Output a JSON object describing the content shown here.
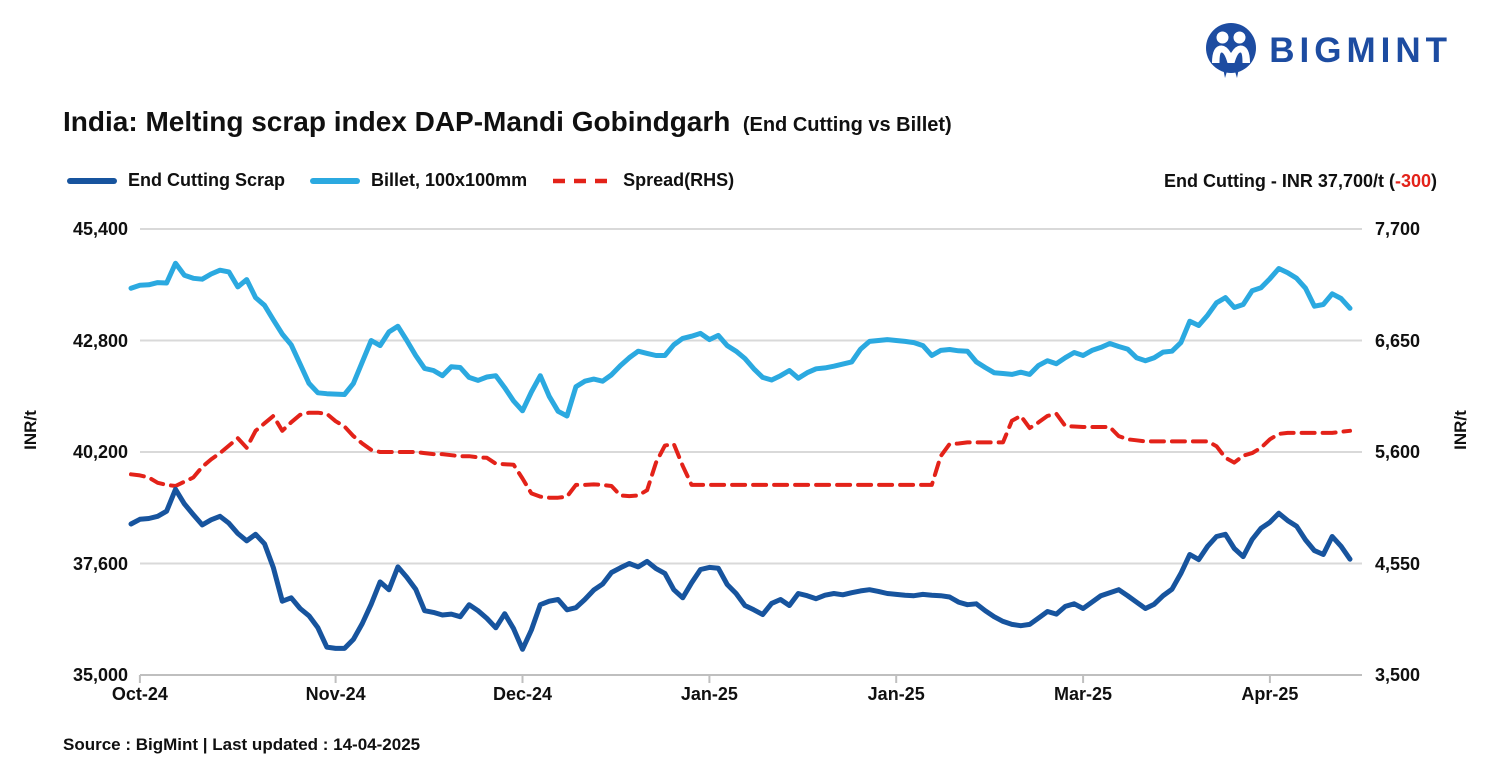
{
  "header": {
    "logo_text": "BIGMINT",
    "title": "India: Melting scrap index DAP-Mandi Gobindgarh",
    "title_suffix": "(End Cutting vs Billet)"
  },
  "legend": [
    {
      "label": "End Cutting Scrap",
      "color": "#17549E",
      "style": "solid"
    },
    {
      "label": "Billet, 100x100mm",
      "color": "#2BA9E0",
      "style": "solid"
    },
    {
      "label": "Spread(RHS)",
      "color": "#E32219",
      "style": "dashed"
    }
  ],
  "annotation": {
    "prefix": "End Cutting - INR 37,700/t (",
    "change": "-300",
    "suffix": ")"
  },
  "footer": {
    "source": "Source : BigMint | Last updated : 14-04-2025"
  },
  "colors": {
    "brand_navy": "#1D4CA1",
    "negative": "#E32219",
    "gridline": "#D9D9D9",
    "axis_line": "#BFBFBF"
  },
  "chart_data": {
    "type": "line",
    "title": "India: Melting scrap index DAP-Mandi Gobindgarh (End Cutting vs Billet)",
    "x_tick_labels": [
      "Oct-24",
      "Nov-24",
      "Dec-24",
      "Jan-25",
      "Jan-25",
      "Mar-25",
      "Apr-25"
    ],
    "x_tick_indices": [
      1,
      23,
      44,
      65,
      86,
      107,
      128
    ],
    "left_axis": {
      "label": "INR/t",
      "ticks": [
        35000,
        37600,
        40200,
        42800,
        45400
      ],
      "range": [
        35000,
        45400
      ]
    },
    "right_axis": {
      "label": "INR/t",
      "ticks": [
        3500,
        4550,
        5600,
        6650,
        7700
      ],
      "range": [
        3500,
        7700
      ]
    },
    "grid": "horizontal",
    "legend_position": "top-left",
    "last_values": {
      "end_cutting_inr_t": 37700,
      "change": -300
    },
    "series": [
      {
        "name": "End Cutting Scrap",
        "axis": "left",
        "color": "#17549E",
        "style": "solid",
        "width": 5,
        "values": [
          38520,
          38630,
          38650,
          38700,
          38820,
          39330,
          38990,
          38740,
          38500,
          38620,
          38700,
          38540,
          38300,
          38130,
          38280,
          38060,
          37500,
          36720,
          36800,
          36550,
          36380,
          36100,
          35650,
          35620,
          35620,
          35830,
          36200,
          36650,
          37170,
          36990,
          37520,
          37280,
          37000,
          36500,
          36460,
          36400,
          36420,
          36360,
          36640,
          36500,
          36320,
          36100,
          36430,
          36080,
          35600,
          36050,
          36640,
          36720,
          36760,
          36520,
          36570,
          36760,
          36980,
          37120,
          37390,
          37500,
          37600,
          37520,
          37650,
          37480,
          37370,
          36990,
          36800,
          37150,
          37460,
          37510,
          37490,
          37110,
          36900,
          36620,
          36520,
          36410,
          36670,
          36760,
          36620,
          36900,
          36850,
          36780,
          36860,
          36900,
          36870,
          36920,
          36960,
          36990,
          36950,
          36900,
          36880,
          36860,
          36850,
          36880,
          36860,
          36850,
          36820,
          36700,
          36640,
          36660,
          36500,
          36360,
          36250,
          36180,
          36150,
          36180,
          36330,
          36480,
          36420,
          36600,
          36660,
          36550,
          36700,
          36850,
          36920,
          36990,
          36850,
          36700,
          36550,
          36650,
          36850,
          37000,
          37370,
          37810,
          37690,
          38000,
          38230,
          38280,
          37950,
          37760,
          38160,
          38420,
          38560,
          38770,
          38600,
          38470,
          38150,
          37900,
          37810,
          38230,
          38000,
          37700
        ]
      },
      {
        "name": "Billet, 100x100mm",
        "axis": "left",
        "color": "#2BA9E0",
        "style": "solid",
        "width": 5,
        "values": [
          44020,
          44090,
          44100,
          44150,
          44140,
          44600,
          44320,
          44250,
          44230,
          44350,
          44440,
          44400,
          44050,
          44220,
          43800,
          43620,
          43280,
          42950,
          42700,
          42250,
          41800,
          41580,
          41560,
          41550,
          41540,
          41800,
          42300,
          42800,
          42680,
          43000,
          43130,
          42800,
          42450,
          42150,
          42100,
          41980,
          42190,
          42170,
          41940,
          41870,
          41950,
          41980,
          41700,
          41390,
          41160,
          41600,
          41980,
          41500,
          41150,
          41040,
          41720,
          41850,
          41900,
          41850,
          42000,
          42215,
          42400,
          42550,
          42500,
          42450,
          42450,
          42700,
          42850,
          42900,
          42965,
          42820,
          42920,
          42680,
          42550,
          42380,
          42140,
          41940,
          41880,
          41980,
          42100,
          41920,
          42050,
          42140,
          42160,
          42200,
          42250,
          42300,
          42600,
          42780,
          42800,
          42820,
          42800,
          42780,
          42750,
          42680,
          42450,
          42570,
          42590,
          42560,
          42550,
          42300,
          42170,
          42050,
          42030,
          42010,
          42060,
          42010,
          42220,
          42330,
          42260,
          42400,
          42520,
          42450,
          42570,
          42640,
          42730,
          42660,
          42600,
          42400,
          42330,
          42400,
          42530,
          42550,
          42750,
          43250,
          43150,
          43390,
          43680,
          43800,
          43570,
          43640,
          43960,
          44030,
          44240,
          44480,
          44380,
          44250,
          44020,
          43600,
          43640,
          43890,
          43780,
          43550
        ]
      },
      {
        "name": "Spread(RHS)",
        "axis": "right",
        "color": "#E32219",
        "style": "dashed",
        "width": 4,
        "values": [
          5390,
          5380,
          5360,
          5310,
          5290,
          5280,
          5320,
          5360,
          5460,
          5530,
          5590,
          5660,
          5730,
          5640,
          5800,
          5870,
          5940,
          5800,
          5880,
          5950,
          5970,
          5970,
          5960,
          5890,
          5840,
          5750,
          5680,
          5620,
          5600,
          5600,
          5600,
          5600,
          5600,
          5590,
          5580,
          5580,
          5570,
          5560,
          5560,
          5550,
          5545,
          5490,
          5485,
          5480,
          5350,
          5210,
          5180,
          5170,
          5170,
          5180,
          5290,
          5290,
          5295,
          5290,
          5280,
          5190,
          5185,
          5190,
          5240,
          5500,
          5660,
          5675,
          5470,
          5290,
          5290,
          5290,
          5290,
          5290,
          5290,
          5290,
          5290,
          5290,
          5290,
          5290,
          5290,
          5290,
          5290,
          5290,
          5290,
          5290,
          5290,
          5290,
          5290,
          5290,
          5290,
          5290,
          5290,
          5290,
          5290,
          5290,
          5290,
          5560,
          5675,
          5680,
          5690,
          5690,
          5690,
          5690,
          5690,
          5895,
          5940,
          5825,
          5880,
          5940,
          5960,
          5845,
          5840,
          5835,
          5835,
          5835,
          5835,
          5750,
          5720,
          5710,
          5700,
          5700,
          5700,
          5700,
          5700,
          5700,
          5700,
          5700,
          5655,
          5545,
          5500,
          5565,
          5590,
          5640,
          5720,
          5770,
          5780,
          5780,
          5780,
          5780,
          5780,
          5780,
          5790,
          5800
        ]
      }
    ]
  }
}
